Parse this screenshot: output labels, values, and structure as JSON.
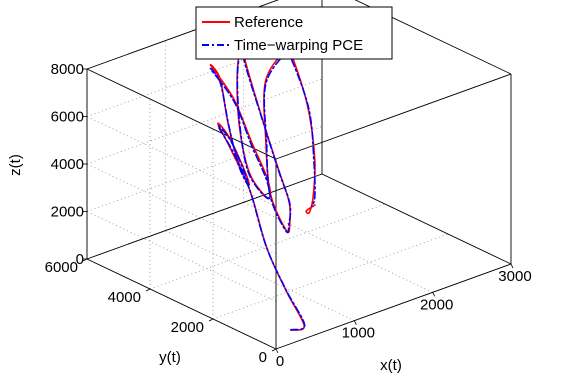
{
  "chart_data": {
    "type": "line",
    "projection": "3d",
    "legend": {
      "placement": "top-center",
      "entries": [
        "Reference",
        "Time−warping PCE"
      ]
    },
    "series": [
      {
        "name": "Reference",
        "color": "#ff0000",
        "style": "solid",
        "x": [
          250,
          420,
          620,
          850,
          1200,
          1400,
          1350,
          1100,
          900,
          1000,
          1200,
          1380,
          1500,
          1420,
          1150,
          900,
          780,
          830,
          1150,
          1500,
          1800,
          1950,
          1850,
          1500,
          1150,
          930,
          820,
          900,
          1300,
          1800,
          2200,
          2550,
          2600,
          2250,
          1700,
          1200,
          950,
          950,
          1100
        ],
        "y": [
          150,
          150,
          1200,
          2400,
          3800,
          4900,
          5200,
          4200,
          3200,
          3350,
          4150,
          4950,
          5500,
          5600,
          4200,
          3000,
          2200,
          2300,
          3700,
          4900,
          5700,
          5900,
          5600,
          4200,
          2800,
          1900,
          1600,
          1900,
          3400,
          4800,
          5800,
          6000,
          6000,
          4600,
          3000,
          1800,
          1300,
          1400,
          1500
        ],
        "z": [
          400,
          380,
          900,
          1700,
          2800,
          3600,
          4600,
          4900,
          4300,
          3600,
          3700,
          4700,
          6100,
          6700,
          6500,
          5700,
          4800,
          3900,
          3700,
          4600,
          6000,
          7000,
          6500,
          5400,
          4500,
          3900,
          3300,
          2700,
          2800,
          3600,
          5000,
          5800,
          5600,
          4700,
          4100,
          3900,
          3800,
          3800,
          3800
        ]
      },
      {
        "name": "Time−warping PCE",
        "color": "#0000ff",
        "style": "dash-dot",
        "x": [
          250,
          430,
          630,
          860,
          1210,
          1390,
          1330,
          1090,
          910,
          1010,
          1210,
          1370,
          1480,
          1400,
          1140,
          910,
          790,
          840,
          1160,
          1490,
          1780,
          1930,
          1830,
          1490,
          1140,
          920,
          830,
          910,
          1310,
          1790,
          2180,
          2520,
          2560,
          2230,
          1690,
          1220,
          1060
        ],
        "y": [
          150,
          160,
          1250,
          2450,
          3850,
          4850,
          5150,
          4150,
          3250,
          3400,
          4200,
          4900,
          5450,
          5550,
          4150,
          3050,
          2250,
          2350,
          3750,
          4850,
          5650,
          5850,
          5550,
          4150,
          2750,
          1850,
          1650,
          1950,
          3450,
          4750,
          5750,
          5950,
          5900,
          4500,
          3000,
          1800,
          1500
        ],
        "z": [
          420,
          400,
          950,
          1750,
          2850,
          3650,
          4550,
          4850,
          4250,
          3550,
          3650,
          4650,
          6000,
          6600,
          6400,
          5600,
          4700,
          3850,
          3650,
          4550,
          5900,
          6900,
          6400,
          5300,
          4400,
          3850,
          3250,
          2650,
          2750,
          3550,
          4900,
          5700,
          5500,
          4600,
          4000,
          3850,
          3800
        ]
      }
    ],
    "xlabel": "x(t)",
    "ylabel": "y(t)",
    "zlabel": "z(t)",
    "xlim": [
      0,
      3000
    ],
    "ylim": [
      0,
      6000
    ],
    "zlim": [
      0,
      8000
    ],
    "xticks": [
      0,
      1000,
      2000,
      3000
    ],
    "yticks": [
      0,
      2000,
      4000,
      6000
    ],
    "zticks": [
      0,
      2000,
      4000,
      6000,
      8000
    ],
    "grid": true
  }
}
